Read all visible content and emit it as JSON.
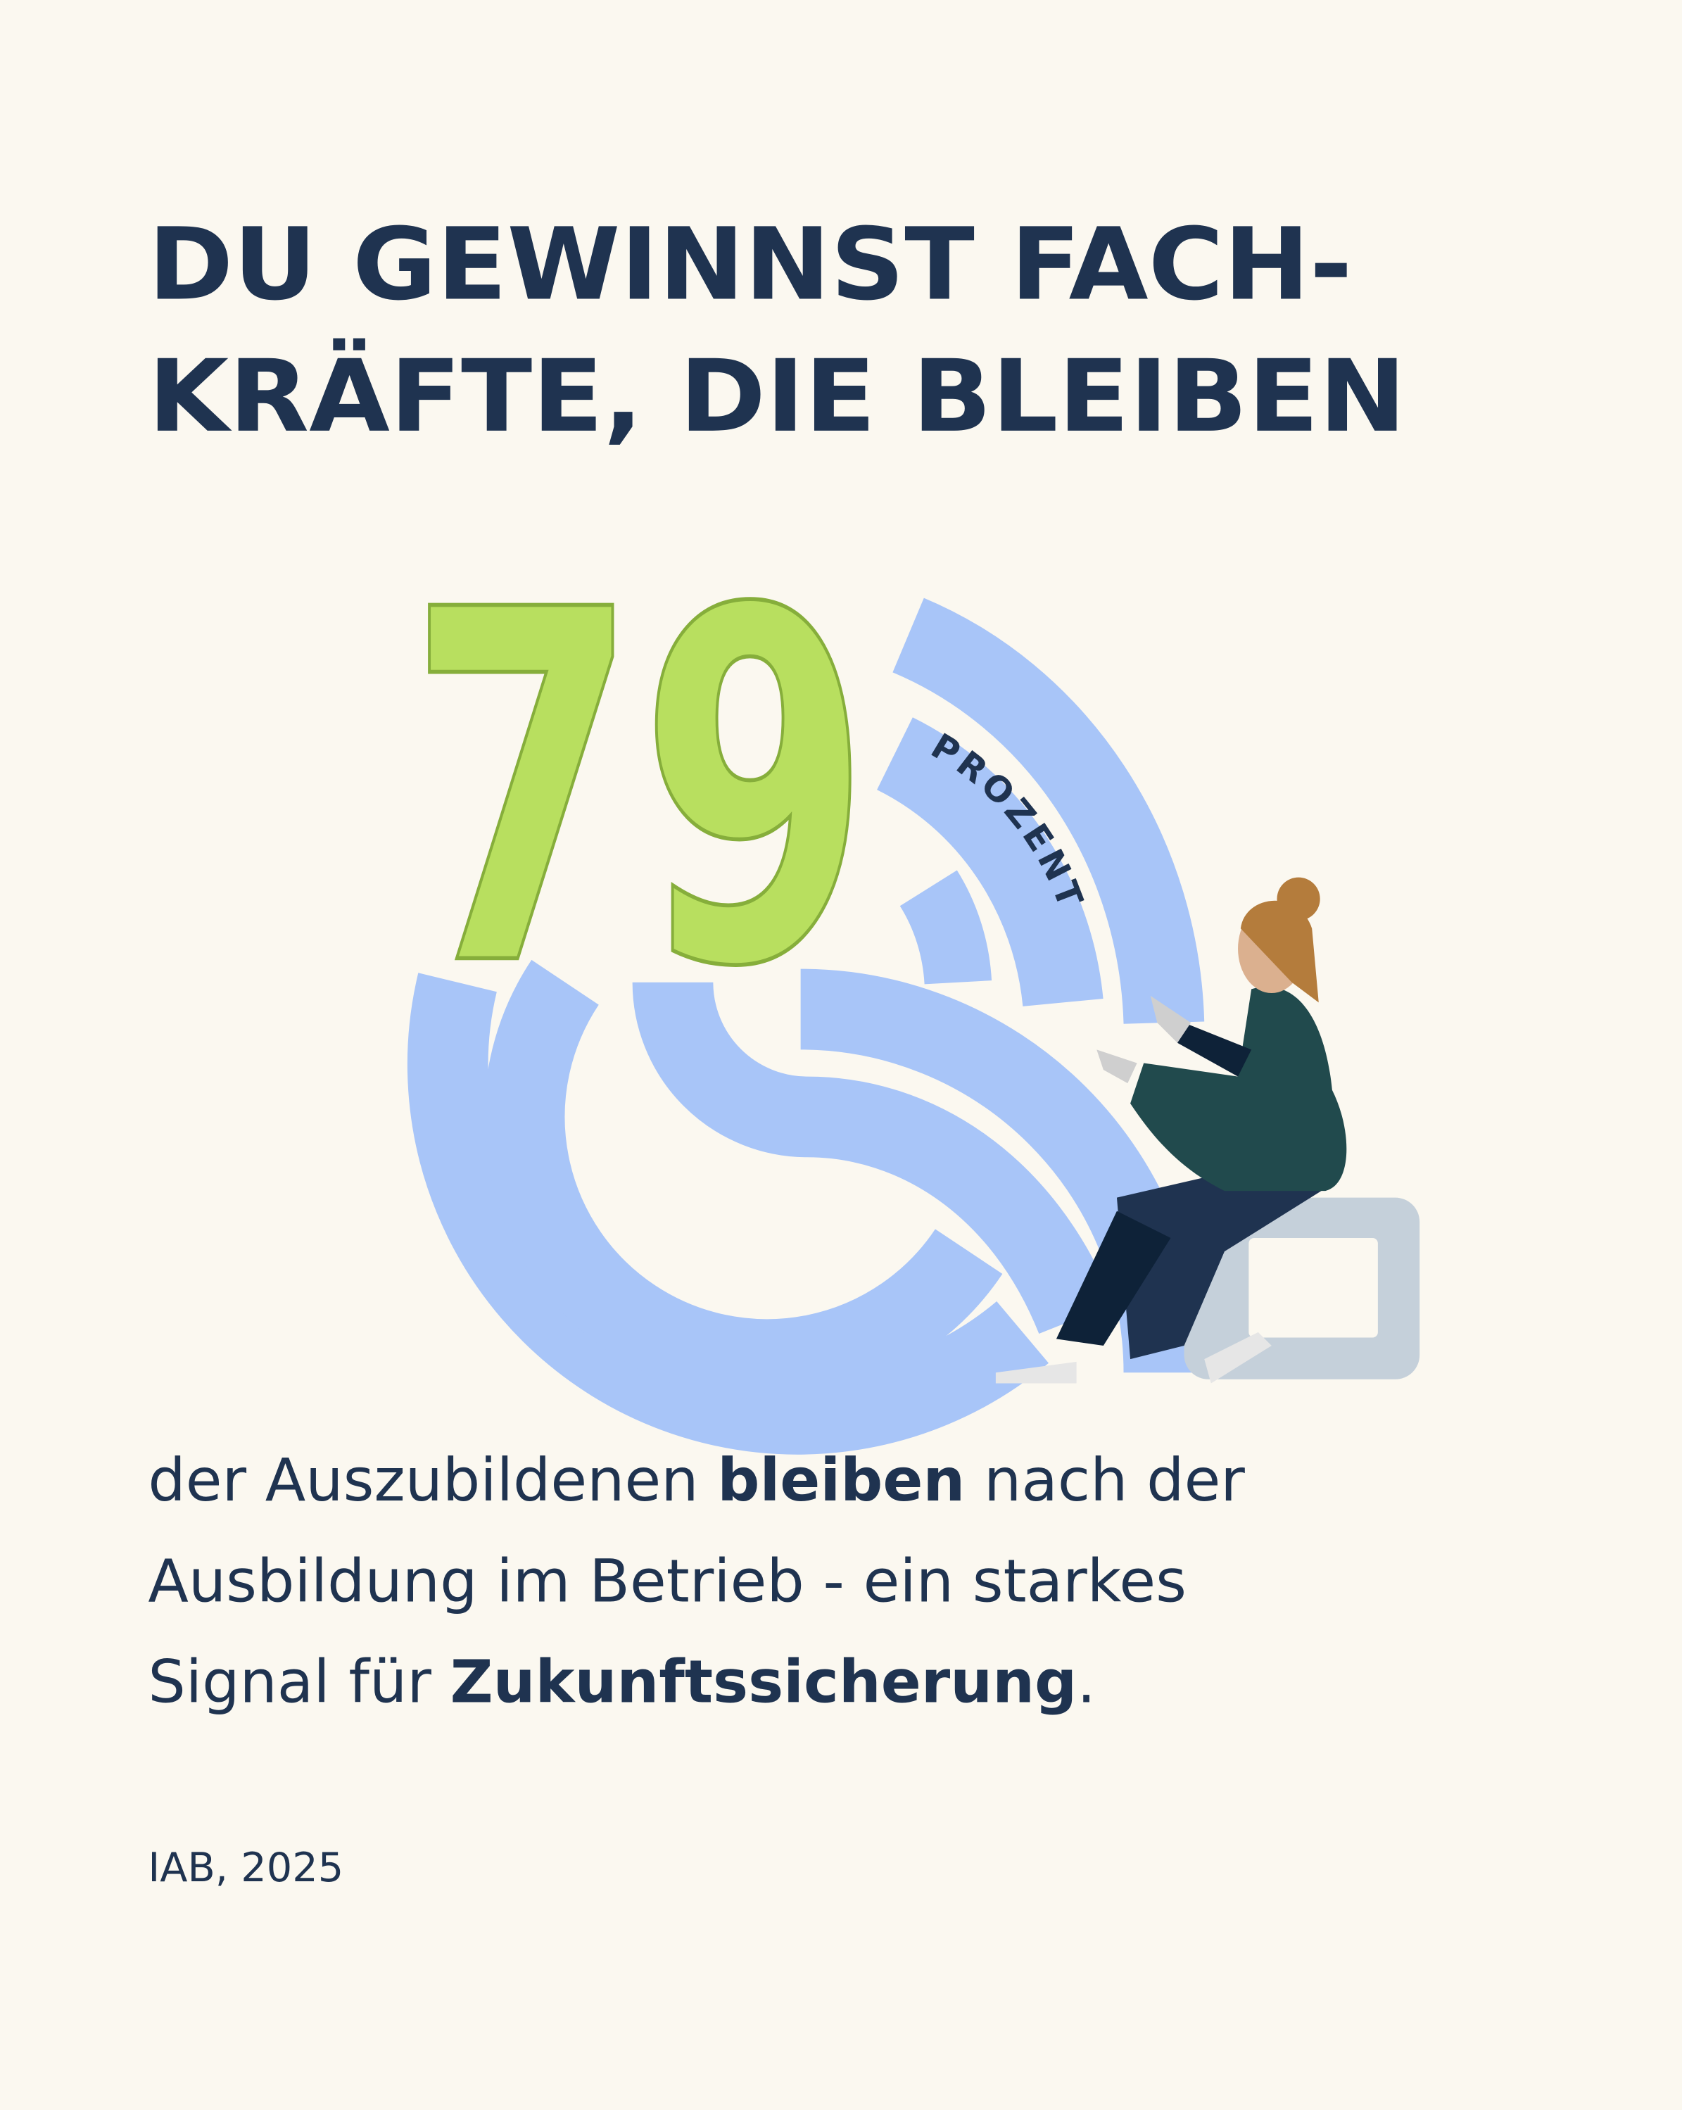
{
  "header": {
    "title_lines": [
      "DU GEWINNST FACH-",
      "KRÄFTE, DIE BLEIBEN"
    ]
  },
  "figure": {
    "number": 79,
    "unit": "PROZENT"
  },
  "body": {
    "lines": [
      [
        {
          "text": "der Auszubildenen ",
          "bold": false
        },
        {
          "text": "bleiben",
          "bold": true
        },
        {
          "text": " nach der",
          "bold": false
        }
      ],
      [
        {
          "text": "Ausbildung im Betrieb - ein starkes",
          "bold": false
        }
      ],
      [
        {
          "text": "Signal für ",
          "bold": false
        },
        {
          "text": "Zukunftssicherung",
          "bold": true
        },
        {
          "text": ".",
          "bold": false
        }
      ]
    ]
  },
  "source": "IAB, 2025"
}
